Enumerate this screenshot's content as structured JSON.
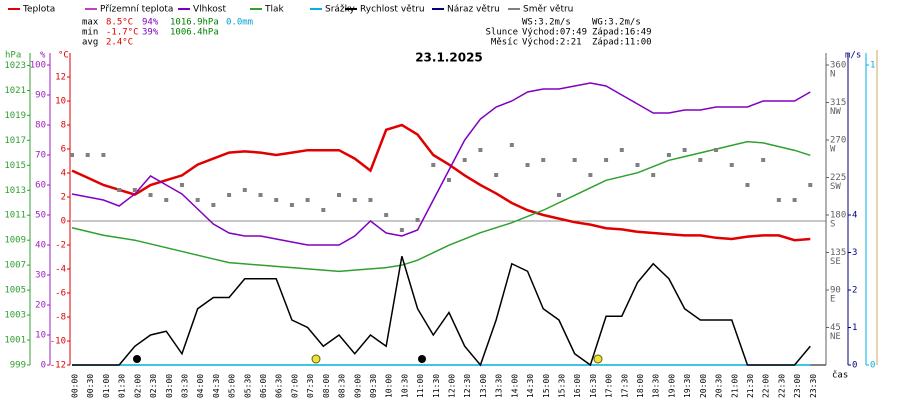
{
  "chart_data": {
    "type": "line",
    "title": "23.1.2025",
    "x_label": "čas",
    "categories": [
      "00:00",
      "00:30",
      "01:00",
      "01:30",
      "02:00",
      "02:30",
      "03:00",
      "03:30",
      "04:00",
      "04:30",
      "05:00",
      "05:30",
      "06:00",
      "06:30",
      "07:00",
      "07:30",
      "08:00",
      "08:30",
      "09:00",
      "09:30",
      "10:00",
      "10:30",
      "11:00",
      "11:30",
      "12:00",
      "12:30",
      "13:00",
      "13:30",
      "14:00",
      "14:30",
      "15:00",
      "15:30",
      "16:00",
      "16:30",
      "17:00",
      "17:30",
      "18:00",
      "18:30",
      "19:00",
      "19:30",
      "20:00",
      "20:30",
      "21:00",
      "21:30",
      "22:00",
      "22:30",
      "23:00",
      "23:30"
    ],
    "axes": [
      {
        "label": "°C",
        "color": "#e00000",
        "ylim": [
          -12,
          14
        ],
        "yticks": [
          -12,
          -10,
          -8,
          -6,
          -4,
          -2,
          0,
          2,
          4,
          6,
          8,
          10,
          12
        ],
        "series": [
          {
            "name": "Teplota",
            "color": "#e00000",
            "values": [
              4.2,
              3.6,
              3.0,
              2.6,
              2.2,
              3.0,
              3.4,
              3.8,
              4.7,
              5.2,
              5.7,
              5.8,
              5.7,
              5.5,
              5.7,
              5.9,
              5.9,
              5.9,
              5.2,
              4.2,
              7.6,
              8.0,
              7.2,
              5.5,
              4.7,
              3.8,
              3.0,
              2.3,
              1.5,
              0.9,
              0.5,
              0.2,
              -0.1,
              -0.3,
              -0.6,
              -0.7,
              -0.9,
              -1.0,
              -1.1,
              -1.2,
              -1.2,
              -1.4,
              -1.5,
              -1.3,
              -1.2,
              -1.2,
              -1.6,
              -1.5
            ]
          },
          {
            "name": "Přízemní teplota",
            "color": "#c040c0",
            "values": [
              null,
              null,
              null,
              null,
              null,
              null,
              null,
              null,
              null,
              null,
              null,
              null,
              null,
              null,
              null,
              null,
              null,
              null,
              null,
              null,
              null,
              null,
              null,
              null,
              null,
              null,
              null,
              null,
              null,
              null,
              null,
              null,
              null,
              null,
              null,
              null,
              null,
              null,
              null,
              null,
              null,
              null,
              null,
              null,
              null,
              null,
              null,
              null
            ]
          }
        ]
      },
      {
        "label": "%",
        "color": "#a020c0",
        "ylim": [
          0,
          104
        ],
        "yticks": [
          0,
          10,
          20,
          30,
          40,
          50,
          60,
          70,
          80,
          90,
          100
        ],
        "series": [
          {
            "name": "Vlhkost",
            "color": "#8000c0",
            "values": [
              57,
              56,
              55,
              53,
              57,
              63,
              60,
              57,
              52,
              47,
              44,
              43,
              43,
              42,
              41,
              40,
              40,
              40,
              43,
              48,
              44,
              43,
              45,
              55,
              65,
              75,
              82,
              86,
              88,
              91,
              92,
              92,
              93,
              94,
              93,
              90,
              87,
              84,
              84,
              85,
              85,
              86,
              86,
              86,
              88,
              88,
              88,
              91
            ]
          }
        ]
      },
      {
        "label": "hPa",
        "color": "#30a030",
        "ylim": [
          999,
          1024
        ],
        "yticks": [
          999,
          1001,
          1003,
          1005,
          1007,
          1009,
          1011,
          1013,
          1015,
          1017,
          1019,
          1021,
          1023
        ],
        "series": [
          {
            "name": "Tlak",
            "color": "#30a030",
            "values": [
              1010.0,
              1009.7,
              1009.4,
              1009.2,
              1009.0,
              1008.7,
              1008.4,
              1008.1,
              1007.8,
              1007.5,
              1007.2,
              1007.1,
              1007.0,
              1006.9,
              1006.8,
              1006.7,
              1006.6,
              1006.5,
              1006.6,
              1006.7,
              1006.8,
              1007.0,
              1007.4,
              1008.0,
              1008.6,
              1009.1,
              1009.6,
              1010.0,
              1010.4,
              1010.9,
              1011.4,
              1012.0,
              1012.6,
              1013.2,
              1013.8,
              1014.1,
              1014.4,
              1014.9,
              1015.4,
              1015.7,
              1016.0,
              1016.3,
              1016.6,
              1016.9,
              1016.8,
              1016.5,
              1016.2,
              1015.8
            ]
          }
        ]
      },
      {
        "color": "#00b0e0",
        "ylim": [
          0,
          1.04
        ],
        "yticks": [
          0,
          1
        ],
        "series": [
          {
            "name": "Srážky",
            "color": "#00b0e0",
            "values": [
              0,
              0,
              0,
              0,
              0,
              0,
              0,
              0,
              0,
              0,
              0,
              0,
              0,
              0,
              0,
              0,
              0,
              0,
              0,
              0,
              0,
              0,
              0,
              0,
              0,
              0,
              0,
              0,
              0,
              0,
              0,
              0,
              0,
              0,
              0,
              0,
              0,
              0,
              0,
              0,
              0,
              0,
              0,
              0,
              0,
              0,
              0,
              0
            ]
          }
        ]
      },
      {
        "label": "m/s",
        "color": "#000080",
        "ylim": [
          0,
          8.32
        ],
        "yticks": [
          0,
          1,
          2,
          3,
          4
        ],
        "series": [
          {
            "name": "Rychlost větru",
            "color": "#000000",
            "values": [
              0,
              0,
              0,
              0,
              0.5,
              0.8,
              0.9,
              0.3,
              1.5,
              1.8,
              1.8,
              2.3,
              2.3,
              2.3,
              1.2,
              1.0,
              0.5,
              0.8,
              0.3,
              0.8,
              0.5,
              2.9,
              1.5,
              0.8,
              1.4,
              0.5,
              0,
              1.2,
              2.7,
              2.5,
              1.5,
              1.2,
              0.3,
              0,
              1.3,
              1.3,
              2.2,
              2.7,
              2.3,
              1.5,
              1.2,
              1.2,
              1.2,
              0,
              0,
              0,
              0,
              0.5
            ]
          },
          {
            "name": "Náraz větru",
            "color": "#000080",
            "values": [
              null,
              null,
              null,
              null,
              null,
              null,
              null,
              null,
              null,
              null,
              null,
              null,
              null,
              null,
              null,
              null,
              null,
              null,
              null,
              null,
              null,
              null,
              null,
              null,
              null,
              null,
              null,
              null,
              null,
              null,
              null,
              null,
              null,
              null,
              null,
              null,
              null,
              null,
              null,
              null,
              null,
              null,
              null,
              null,
              null,
              null,
              null,
              null
            ]
          }
        ]
      },
      {
        "color": "#606060",
        "ylim": [
          0,
          374.4
        ],
        "yticks": [
          45,
          90,
          135,
          180,
          225,
          270,
          315,
          360
        ],
        "direction_labels": [
          "NE",
          "E",
          "SE",
          "S",
          "SW",
          "W",
          "NW",
          "N"
        ],
        "series": [
          {
            "name": "Směr větru",
            "color": "#808080",
            "marker": "square",
            "values": [
              252,
              252,
              252,
              210,
              210,
              204,
              198,
              216,
              198,
              192,
              204,
              210,
              204,
              198,
              192,
              198,
              186,
              204,
              198,
              198,
              180,
              162,
              174,
              240,
              222,
              246,
              258,
              228,
              264,
              240,
              246,
              204,
              246,
              228,
              246,
              258,
              240,
              228,
              252,
              258,
              246,
              258,
              240,
              216,
              246,
              198,
              198,
              216
            ]
          }
        ]
      }
    ],
    "stats": [
      [
        "max",
        "8.5°C",
        "94%",
        "1016.9hPa",
        "0.0mm"
      ],
      [
        "min",
        "-1.7°C",
        "39%",
        "1006.4hPa"
      ],
      [
        "avg",
        "2.4°C"
      ]
    ],
    "astro": [
      [
        "WS:3.2m/s",
        "WG:3.2m/s"
      ],
      [
        "Slunce",
        "Východ:07:49",
        "Západ:16:49"
      ],
      [
        "Měsíc",
        "Východ:2:21",
        "Západ:11:00"
      ]
    ]
  }
}
